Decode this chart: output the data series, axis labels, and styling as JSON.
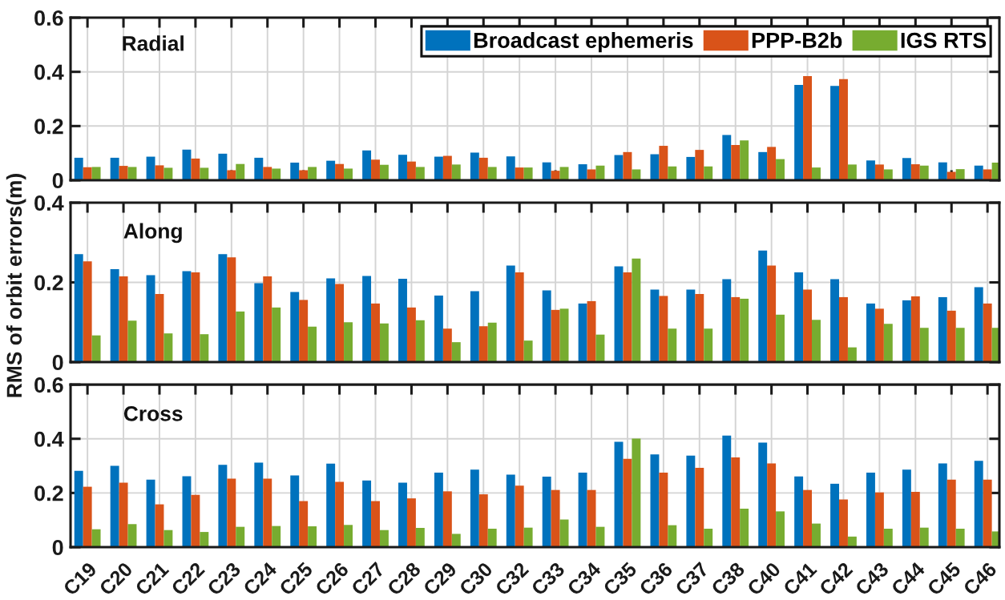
{
  "chart_data": [
    {
      "type": "bar",
      "title": "Radial",
      "categories": [
        null,
        null,
        null,
        null,
        null,
        null,
        null,
        null,
        null,
        null,
        null,
        null,
        null,
        null,
        null,
        null,
        null,
        null,
        null,
        null,
        null,
        null,
        null,
        null,
        null,
        null
      ],
      "series": [
        {
          "name": "Broadcast ephemeris",
          "color": "#0072bd",
          "values": [
            0.083,
            0.083,
            0.087,
            0.113,
            0.098,
            0.083,
            0.065,
            0.072,
            0.11,
            0.094,
            0.087,
            0.102,
            0.088,
            0.066,
            0.059,
            0.093,
            0.096,
            0.086,
            0.167,
            0.104,
            0.352,
            0.348,
            0.073,
            0.082,
            0.066,
            0.054
          ]
        },
        {
          "name": "PPP-B2b",
          "color": "#d95319",
          "values": [
            0.048,
            0.053,
            0.055,
            0.08,
            0.037,
            0.049,
            0.037,
            0.06,
            0.076,
            0.069,
            0.09,
            0.083,
            0.047,
            0.035,
            0.04,
            0.104,
            0.127,
            0.112,
            0.13,
            0.123,
            0.384,
            0.373,
            0.058,
            0.059,
            0.031,
            0.04
          ]
        },
        {
          "name": "IGS RTS",
          "color": "#77ac30",
          "values": [
            0.049,
            0.049,
            0.046,
            0.046,
            0.06,
            0.043,
            0.049,
            0.043,
            0.057,
            0.049,
            0.058,
            0.049,
            0.047,
            0.049,
            0.054,
            0.04,
            0.051,
            0.051,
            0.147,
            0.078,
            0.047,
            0.058,
            0.04,
            0.054,
            0.041,
            0.065
          ]
        }
      ],
      "ylim": [
        0,
        0.6
      ],
      "yticks": [
        0,
        0.2,
        0.4,
        0.6
      ],
      "grid": true,
      "legend": "top right",
      "tick_labels": "y"
    },
    {
      "type": "bar",
      "title": "Along",
      "ylabel": "RMS of orbit errors(m)",
      "categories": [
        null,
        null,
        null,
        null,
        null,
        null,
        null,
        null,
        null,
        null,
        null,
        null,
        null,
        null,
        null,
        null,
        null,
        null,
        null,
        null,
        null,
        null,
        null,
        null,
        null,
        null
      ],
      "series": [
        {
          "color": "#0072bd",
          "values": [
            0.271,
            0.233,
            0.218,
            0.228,
            0.271,
            0.198,
            0.176,
            0.21,
            0.216,
            0.209,
            0.167,
            0.178,
            0.242,
            0.18,
            0.147,
            0.24,
            0.182,
            0.182,
            0.208,
            0.28,
            0.225,
            0.208,
            0.147,
            0.155,
            0.163,
            0.188
          ]
        },
        {
          "color": "#d95319",
          "values": [
            0.253,
            0.215,
            0.171,
            0.225,
            0.263,
            0.215,
            0.156,
            0.196,
            0.147,
            0.137,
            0.084,
            0.09,
            0.225,
            0.131,
            0.153,
            0.225,
            0.166,
            0.171,
            0.163,
            0.242,
            0.182,
            0.163,
            0.134,
            0.165,
            0.129,
            0.147
          ]
        },
        {
          "color": "#77ac30",
          "values": [
            0.067,
            0.104,
            0.072,
            0.07,
            0.127,
            0.137,
            0.089,
            0.1,
            0.097,
            0.105,
            0.05,
            0.099,
            0.054,
            0.134,
            0.069,
            0.26,
            0.084,
            0.084,
            0.159,
            0.119,
            0.106,
            0.037,
            0.096,
            0.086,
            0.086,
            0.086
          ]
        }
      ],
      "ylim": [
        0,
        0.4
      ],
      "yticks": [
        0,
        0.2,
        0.4
      ],
      "grid": true,
      "tick_labels": "y"
    },
    {
      "type": "bar",
      "title": "Cross",
      "categories": [
        "C19",
        "C20",
        "C21",
        "C22",
        "C23",
        "C24",
        "C25",
        "C26",
        "C27",
        "C28",
        "C29",
        "C30",
        "C32",
        "C33",
        "C34",
        "C35",
        "C36",
        "C37",
        "C38",
        "C40",
        "C41",
        "C42",
        "C43",
        "C44",
        "C45",
        "C46"
      ],
      "series": [
        {
          "color": "#0072bd",
          "values": [
            0.282,
            0.3,
            0.249,
            0.262,
            0.304,
            0.312,
            0.265,
            0.308,
            0.246,
            0.238,
            0.275,
            0.286,
            0.268,
            0.26,
            0.275,
            0.389,
            0.342,
            0.338,
            0.412,
            0.386,
            0.261,
            0.234,
            0.275,
            0.286,
            0.309,
            0.319
          ]
        },
        {
          "color": "#d95319",
          "values": [
            0.223,
            0.238,
            0.158,
            0.193,
            0.253,
            0.253,
            0.17,
            0.241,
            0.17,
            0.18,
            0.206,
            0.195,
            0.227,
            0.211,
            0.211,
            0.326,
            0.275,
            0.293,
            0.331,
            0.309,
            0.211,
            0.176,
            0.202,
            0.204,
            0.249,
            0.249
          ]
        },
        {
          "color": "#77ac30",
          "values": [
            0.066,
            0.085,
            0.063,
            0.056,
            0.075,
            0.078,
            0.077,
            0.082,
            0.063,
            0.071,
            0.049,
            0.068,
            0.072,
            0.102,
            0.075,
            0.401,
            0.081,
            0.068,
            0.142,
            0.132,
            0.087,
            0.039,
            0.068,
            0.072,
            0.068,
            0.058
          ]
        }
      ],
      "ylim": [
        0,
        0.6
      ],
      "yticks": [
        0,
        0.2,
        0.4,
        0.6
      ],
      "grid": true
    }
  ]
}
